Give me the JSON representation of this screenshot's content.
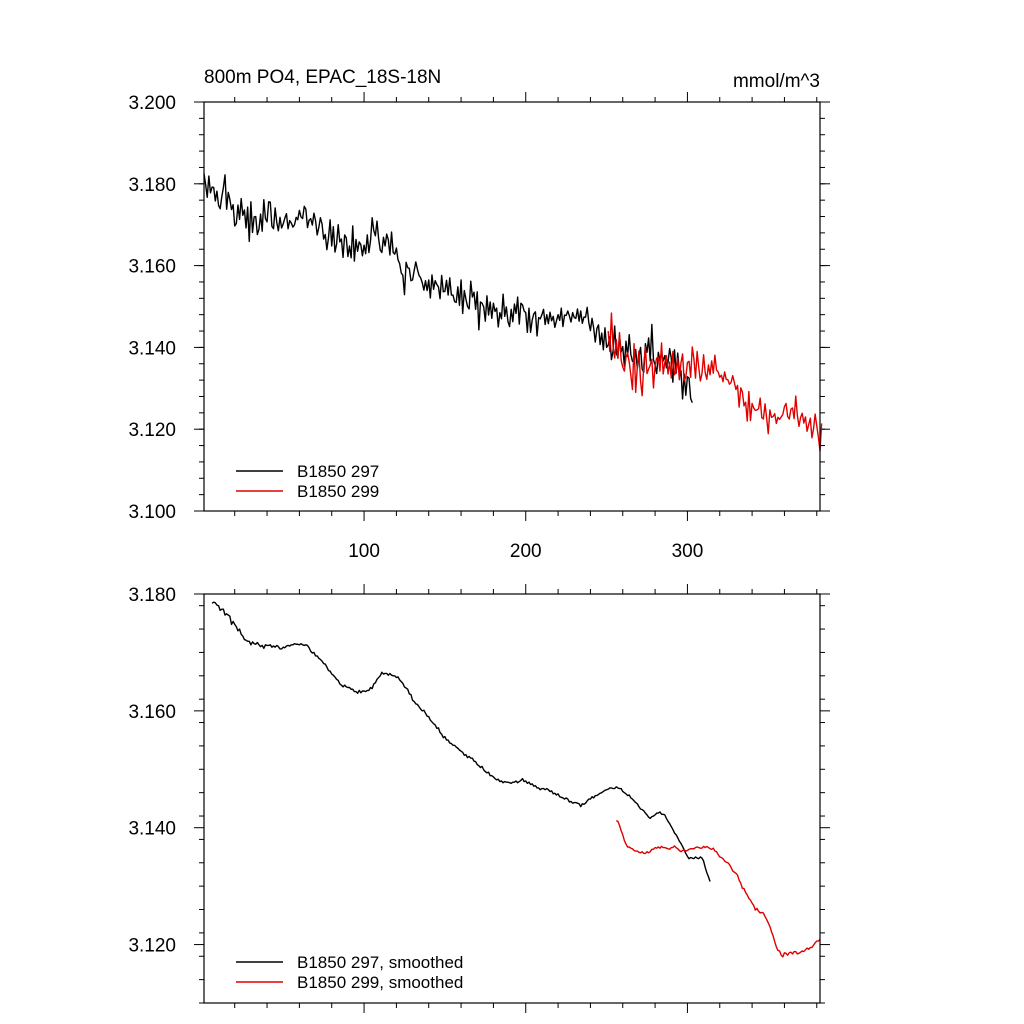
{
  "colors": {
    "black": "#000000",
    "red": "#e00000"
  },
  "chart_data": [
    {
      "type": "line",
      "title": "800m PO4, EPAC_18S-18N",
      "units": "mmol/m^3",
      "xlabel": "",
      "ylabel": "",
      "xlim": [
        1,
        382
      ],
      "ylim": [
        3.1,
        3.2
      ],
      "x_ticks": [
        100,
        200,
        300
      ],
      "x_tick_labels": [
        "100",
        "200",
        "300"
      ],
      "y_ticks": [
        3.1,
        3.12,
        3.14,
        3.16,
        3.18,
        3.2
      ],
      "y_tick_labels": [
        "3.100",
        "3.120",
        "3.140",
        "3.160",
        "3.180",
        "3.200"
      ],
      "legend_position": "bottom-left",
      "series": [
        {
          "name": "B1850 297",
          "color": "#000000",
          "x_start": 1,
          "x_step": 1,
          "values": [
            3.1825,
            3.1798,
            3.1767,
            3.1819,
            3.1778,
            3.1792,
            3.1791,
            3.1758,
            3.1782,
            3.1747,
            3.1739,
            3.1768,
            3.1791,
            3.1822,
            3.1738,
            3.1779,
            3.1762,
            3.1737,
            3.1749,
            3.1697,
            3.1703,
            3.1748,
            3.1713,
            3.1764,
            3.1723,
            3.1736,
            3.1692,
            3.1743,
            3.1659,
            3.1756,
            3.1681,
            3.1719,
            3.172,
            3.1676,
            3.1689,
            3.1726,
            3.1684,
            3.1761,
            3.1715,
            3.1707,
            3.1756,
            3.1755,
            3.1696,
            3.169,
            3.1741,
            3.1706,
            3.1685,
            3.1718,
            3.1692,
            3.1702,
            3.1716,
            3.1727,
            3.169,
            3.171,
            3.1704,
            3.1694,
            3.17,
            3.1718,
            3.1712,
            3.1735,
            3.1719,
            3.1715,
            3.1745,
            3.1738,
            3.1693,
            3.1711,
            3.1715,
            3.1699,
            3.1728,
            3.171,
            3.1675,
            3.1693,
            3.1717,
            3.1702,
            3.1665,
            3.1676,
            3.1639,
            3.1668,
            3.1712,
            3.1648,
            3.1695,
            3.1633,
            3.1652,
            3.17,
            3.1658,
            3.1665,
            3.162,
            3.1675,
            3.1668,
            3.1622,
            3.1648,
            3.1619,
            3.1697,
            3.1611,
            3.1664,
            3.1635,
            3.1658,
            3.1651,
            3.1624,
            3.165,
            3.1629,
            3.1675,
            3.1632,
            3.1661,
            3.1717,
            3.1686,
            3.1673,
            3.1709,
            3.1666,
            3.1638,
            3.1632,
            3.1669,
            3.1648,
            3.1677,
            3.1663,
            3.1626,
            3.1682,
            3.1632,
            3.1628,
            3.1643,
            3.1614,
            3.1605,
            3.1582,
            3.1576,
            3.1529,
            3.1608,
            3.1595,
            3.1593,
            3.1563,
            3.1565,
            3.1588,
            3.1609,
            3.1591,
            3.1576,
            3.157,
            3.1558,
            3.154,
            3.1563,
            3.1539,
            3.1565,
            3.1521,
            3.1577,
            3.1542,
            3.1563,
            3.1554,
            3.1548,
            3.1519,
            3.1576,
            3.1536,
            3.1537,
            3.1564,
            3.1528,
            3.157,
            3.1528,
            3.1528,
            3.1512,
            3.151,
            3.1548,
            3.1503,
            3.1565,
            3.1483,
            3.1539,
            3.1518,
            3.15,
            3.1494,
            3.1562,
            3.1523,
            3.1535,
            3.1493,
            3.1536,
            3.1443,
            3.1511,
            3.1508,
            3.1499,
            3.1464,
            3.1526,
            3.1479,
            3.1511,
            3.1471,
            3.1508,
            3.1488,
            3.1496,
            3.145,
            3.1485,
            3.147,
            3.153,
            3.1476,
            3.1499,
            3.1463,
            3.1451,
            3.1493,
            3.1463,
            3.1506,
            3.1483,
            3.1523,
            3.1457,
            3.1508,
            3.1504,
            3.1489,
            3.1485,
            3.1437,
            3.1496,
            3.1437,
            3.1467,
            3.1482,
            3.1487,
            3.1428,
            3.1473,
            3.147,
            3.148,
            3.1493,
            3.1456,
            3.148,
            3.1458,
            3.1486,
            3.1465,
            3.1476,
            3.1449,
            3.1465,
            3.148,
            3.1466,
            3.1496,
            3.1451,
            3.1479,
            3.1478,
            3.1489,
            3.1477,
            3.1462,
            3.1485,
            3.1473,
            3.1471,
            3.1494,
            3.1464,
            3.1489,
            3.1459,
            3.1474,
            3.1474,
            3.1498,
            3.1461,
            3.1441,
            3.1471,
            3.1448,
            3.1413,
            3.1446,
            3.1455,
            3.1407,
            3.1435,
            3.1394,
            3.1448,
            3.14,
            3.1406,
            3.1426,
            3.137,
            3.1391,
            3.1452,
            3.1386,
            3.1376,
            3.1429,
            3.1389,
            3.1402,
            3.1354,
            3.1415,
            3.1378,
            3.1431,
            3.1383,
            3.1366,
            3.1364,
            3.1395,
            3.1348,
            3.1376,
            3.14,
            3.1347,
            3.1339,
            3.1409,
            3.1388,
            3.1423,
            3.1367,
            3.1456,
            3.137,
            3.1357,
            3.1336,
            3.1388,
            3.1368,
            3.1387,
            3.1367,
            3.138,
            3.135,
            3.1364,
            3.1397,
            3.1374,
            3.1315,
            3.1394,
            3.1337,
            3.1386,
            3.1342,
            3.1343,
            3.1274,
            3.1335,
            3.1283,
            3.1328,
            3.1325,
            3.1275,
            3.1265
          ]
        },
        {
          "name": "B1850 299",
          "color": "#e00000",
          "x_start": 251,
          "x_step": 1,
          "values": [
            3.144,
            3.139,
            3.1484,
            3.1402,
            3.1374,
            3.1419,
            3.1373,
            3.1436,
            3.1369,
            3.1352,
            3.1342,
            3.1376,
            3.1387,
            3.1364,
            3.1332,
            3.1297,
            3.1409,
            3.129,
            3.1353,
            3.1391,
            3.1318,
            3.1282,
            3.1357,
            3.1401,
            3.1336,
            3.1347,
            3.1357,
            3.1371,
            3.1301,
            3.1356,
            3.1374,
            3.1376,
            3.1342,
            3.1411,
            3.1335,
            3.1362,
            3.138,
            3.1335,
            3.1364,
            3.1325,
            3.139,
            3.1333,
            3.1342,
            3.1374,
            3.1321,
            3.1362,
            3.1384,
            3.1318,
            3.1327,
            3.1363,
            3.1366,
            3.1327,
            3.1401,
            3.1372,
            3.1325,
            3.139,
            3.1351,
            3.1318,
            3.1336,
            3.1382,
            3.1338,
            3.1322,
            3.1357,
            3.1333,
            3.1367,
            3.1337,
            3.1381,
            3.1345,
            3.134,
            3.1327,
            3.1332,
            3.1316,
            3.134,
            3.1322,
            3.1321,
            3.131,
            3.1314,
            3.1331,
            3.1315,
            3.1297,
            3.1307,
            3.1254,
            3.1301,
            3.1291,
            3.1257,
            3.1266,
            3.122,
            3.1292,
            3.1221,
            3.1263,
            3.1252,
            3.1246,
            3.1247,
            3.125,
            3.1276,
            3.1228,
            3.1225,
            3.1262,
            3.1227,
            3.1189,
            3.1247,
            3.1229,
            3.1231,
            3.1238,
            3.1214,
            3.1229,
            3.1224,
            3.123,
            3.1236,
            3.1255,
            3.1263,
            3.1231,
            3.1225,
            3.1249,
            3.1252,
            3.1226,
            3.1281,
            3.1234,
            3.1207,
            3.1229,
            3.1239,
            3.1215,
            3.123,
            3.1195,
            3.1211,
            3.1227,
            3.1179,
            3.1201,
            3.1237,
            3.1208,
            3.1181,
            3.1147,
            3.1214
          ]
        }
      ]
    },
    {
      "type": "line",
      "title": "",
      "xlabel": "",
      "ylabel": "",
      "xlim": [
        1,
        382
      ],
      "ylim": [
        3.11,
        3.18
      ],
      "x_ticks": [
        100,
        200,
        300
      ],
      "y_ticks": [
        3.12,
        3.14,
        3.16,
        3.18
      ],
      "y_tick_labels": [
        "3.120",
        "3.140",
        "3.160",
        "3.180"
      ],
      "legend_position": "bottom-left",
      "series": [
        {
          "name": "B1850 297, smoothed",
          "color": "#000000",
          "x_start": 6,
          "x_step": 1,
          "values": [
            3.1784,
            3.1786,
            3.1785,
            3.1781,
            3.178,
            3.1772,
            3.1774,
            3.1774,
            3.1764,
            3.1766,
            3.1764,
            3.1762,
            3.1748,
            3.1753,
            3.1748,
            3.1744,
            3.1737,
            3.174,
            3.1731,
            3.1728,
            3.1722,
            3.1721,
            3.1719,
            3.1719,
            3.1713,
            3.1718,
            3.1715,
            3.1714,
            3.1717,
            3.1713,
            3.171,
            3.1712,
            3.1707,
            3.1713,
            3.1712,
            3.1712,
            3.1713,
            3.1709,
            3.1711,
            3.1709,
            3.1712,
            3.171,
            3.1706,
            3.1706,
            3.1709,
            3.1708,
            3.1711,
            3.1712,
            3.1711,
            3.1713,
            3.1713,
            3.1715,
            3.1714,
            3.1714,
            3.1713,
            3.1715,
            3.1713,
            3.1712,
            3.1713,
            3.1712,
            3.1708,
            3.1702,
            3.1699,
            3.17,
            3.1694,
            3.1694,
            3.169,
            3.1688,
            3.1685,
            3.1681,
            3.168,
            3.1675,
            3.1669,
            3.1668,
            3.1663,
            3.1661,
            3.1658,
            3.1654,
            3.1652,
            3.1646,
            3.1644,
            3.1641,
            3.1644,
            3.1641,
            3.164,
            3.164,
            3.1637,
            3.1637,
            3.1633,
            3.1633,
            3.163,
            3.1635,
            3.1631,
            3.1634,
            3.1634,
            3.1633,
            3.1635,
            3.1635,
            3.164,
            3.1638,
            3.1646,
            3.1648,
            3.1654,
            3.1657,
            3.166,
            3.1666,
            3.1663,
            3.1664,
            3.1664,
            3.1661,
            3.1664,
            3.1661,
            3.166,
            3.166,
            3.1657,
            3.1658,
            3.1653,
            3.165,
            3.1647,
            3.1641,
            3.1639,
            3.1637,
            3.1629,
            3.1628,
            3.1618,
            3.1616,
            3.1612,
            3.1611,
            3.1607,
            3.1603,
            3.16,
            3.1601,
            3.1596,
            3.1591,
            3.159,
            3.1584,
            3.1581,
            3.1578,
            3.1576,
            3.157,
            3.1571,
            3.1563,
            3.156,
            3.1554,
            3.1556,
            3.155,
            3.155,
            3.1545,
            3.1544,
            3.1541,
            3.1541,
            3.1538,
            3.1536,
            3.1533,
            3.1531,
            3.1529,
            3.1524,
            3.1525,
            3.152,
            3.1522,
            3.1519,
            3.1519,
            3.1514,
            3.1513,
            3.1508,
            3.1506,
            3.1503,
            3.1505,
            3.1499,
            3.1496,
            3.1494,
            3.1495,
            3.1489,
            3.1489,
            3.1487,
            3.1484,
            3.1482,
            3.1483,
            3.1479,
            3.148,
            3.1477,
            3.1479,
            3.1478,
            3.1478,
            3.1477,
            3.1476,
            3.1478,
            3.1478,
            3.148,
            3.1477,
            3.1479,
            3.1481,
            3.1484,
            3.1479,
            3.148,
            3.1476,
            3.1478,
            3.1474,
            3.1475,
            3.1471,
            3.1472,
            3.1468,
            3.1468,
            3.1465,
            3.1467,
            3.1467,
            3.1465,
            3.1467,
            3.1465,
            3.1462,
            3.1463,
            3.1458,
            3.1459,
            3.1456,
            3.1458,
            3.1453,
            3.1452,
            3.1451,
            3.1449,
            3.1451,
            3.1449,
            3.1444,
            3.1445,
            3.1442,
            3.1443,
            3.1443,
            3.1442,
            3.1441,
            3.1436,
            3.1441,
            3.144,
            3.1442,
            3.1446,
            3.1449,
            3.1449,
            3.1453,
            3.1451,
            3.1455,
            3.1455,
            3.1457,
            3.1459,
            3.146,
            3.1462,
            3.1464,
            3.1465,
            3.1466,
            3.1468,
            3.1468,
            3.1467,
            3.1467,
            3.147,
            3.1468,
            3.1467,
            3.1467,
            3.1462,
            3.146,
            3.1458,
            3.1455,
            3.1456,
            3.1451,
            3.1449,
            3.1446,
            3.1443,
            3.1441,
            3.1436,
            3.1432,
            3.1431,
            3.1429,
            3.1425,
            3.1422,
            3.1418,
            3.1416,
            3.1419,
            3.142,
            3.1422,
            3.1425,
            3.1425,
            3.1427,
            3.1423,
            3.1423,
            3.1422,
            3.1416,
            3.1411,
            3.1407,
            3.1402,
            3.1397,
            3.1391,
            3.1388,
            3.1383,
            3.1377,
            3.1373,
            3.1368,
            3.1362,
            3.1356,
            3.1351,
            3.1347,
            3.1349,
            3.1348,
            3.1347,
            3.135,
            3.1348,
            3.1347,
            3.135,
            3.1348,
            3.1343,
            3.1332,
            3.1323,
            3.1316,
            3.1308
          ]
        },
        {
          "name": "B1850 299, smoothed",
          "color": "#e00000",
          "x_start": 256,
          "x_step": 1,
          "values": [
            3.1412,
            3.1411,
            3.1404,
            3.1395,
            3.1388,
            3.1378,
            3.1372,
            3.1367,
            3.1367,
            3.1365,
            3.1364,
            3.1361,
            3.136,
            3.136,
            3.1358,
            3.1357,
            3.1359,
            3.1356,
            3.1356,
            3.1359,
            3.1357,
            3.1359,
            3.1363,
            3.1363,
            3.1366,
            3.1365,
            3.1367,
            3.1365,
            3.1368,
            3.1366,
            3.1366,
            3.1365,
            3.1364,
            3.1363,
            3.1366,
            3.1366,
            3.1369,
            3.1366,
            3.1364,
            3.1361,
            3.1359,
            3.1361,
            3.1362,
            3.136,
            3.1361,
            3.1363,
            3.1364,
            3.1364,
            3.1364,
            3.1366,
            3.1367,
            3.1366,
            3.1365,
            3.1365,
            3.1368,
            3.1366,
            3.1368,
            3.1366,
            3.1364,
            3.1363,
            3.1365,
            3.136,
            3.1359,
            3.1354,
            3.135,
            3.1349,
            3.1347,
            3.1343,
            3.1341,
            3.134,
            3.1337,
            3.1332,
            3.1326,
            3.1324,
            3.1322,
            3.1319,
            3.131,
            3.1305,
            3.1296,
            3.1296,
            3.1289,
            3.1285,
            3.1279,
            3.1276,
            3.1271,
            3.1267,
            3.1259,
            3.1262,
            3.1257,
            3.1254,
            3.1255,
            3.1254,
            3.1248,
            3.1243,
            3.1237,
            3.1231,
            3.1222,
            3.1215,
            3.1205,
            3.1196,
            3.119,
            3.1189,
            3.1182,
            3.1179,
            3.1186,
            3.1185,
            3.1182,
            3.1186,
            3.1187,
            3.1184,
            3.1188,
            3.1188,
            3.1184,
            3.1185,
            3.1187,
            3.1189,
            3.1188,
            3.1191,
            3.1194,
            3.1192,
            3.1195,
            3.1195,
            3.1199,
            3.1203,
            3.1206,
            3.1206,
            3.1209
          ]
        }
      ]
    }
  ]
}
